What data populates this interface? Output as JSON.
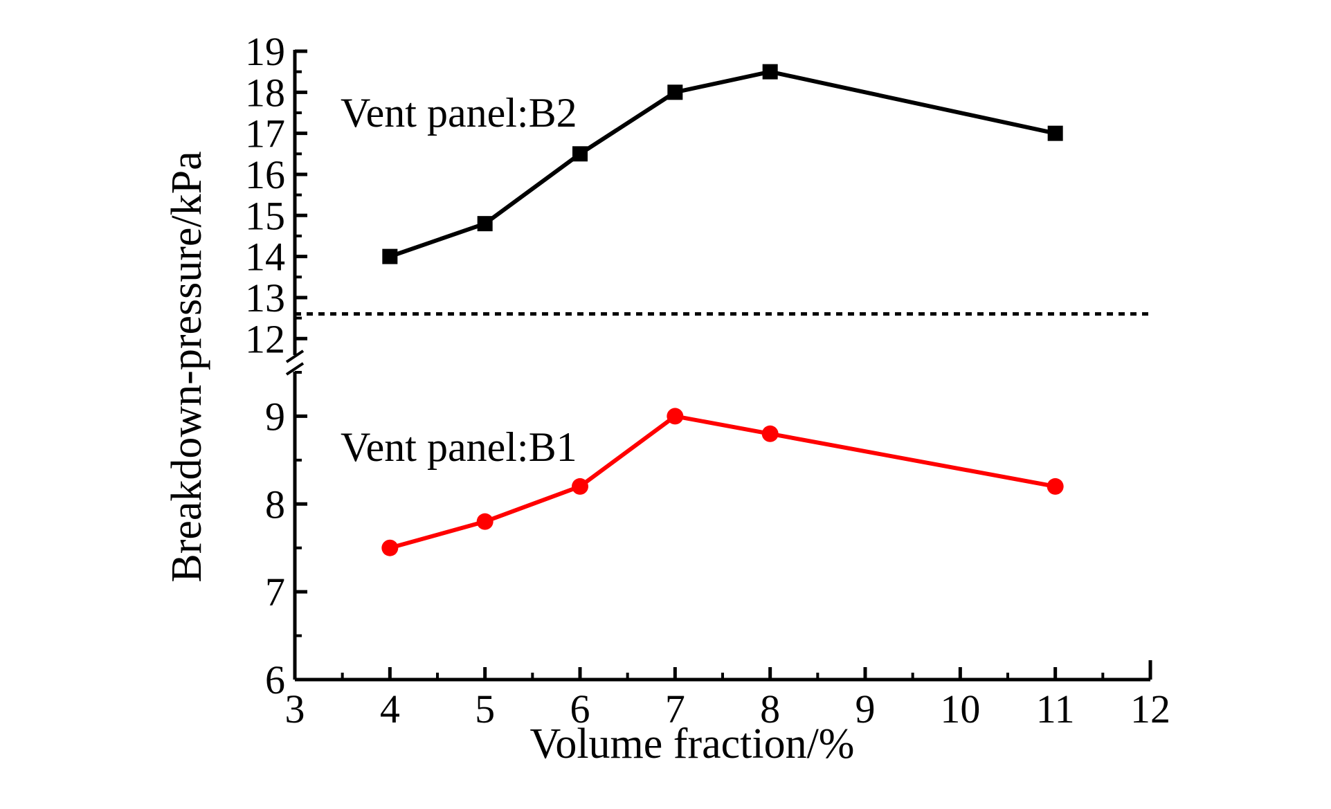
{
  "chart_data": {
    "type": "line",
    "xlabel": "Volume fraction/%",
    "ylabel": "Breakdown-pressure/kPa",
    "xlim": [
      3,
      12
    ],
    "x_ticks": [
      "3",
      "4",
      "5",
      "6",
      "7",
      "8",
      "9",
      "10",
      "11",
      "12"
    ],
    "y_axis_broken": true,
    "y_lower_ticks": [
      "6",
      "7",
      "8",
      "9"
    ],
    "y_upper_ticks": [
      "12",
      "13",
      "14",
      "15",
      "16",
      "17",
      "18",
      "19"
    ],
    "ylim_lower": [
      6,
      9.5
    ],
    "ylim_upper": [
      11.6,
      19
    ],
    "dotted_separator_y": 12.6,
    "grid": false,
    "legend": "none",
    "series": [
      {
        "name": "Vent panel:B2",
        "color": "#000000",
        "marker": "square",
        "x": [
          4,
          5,
          6,
          7,
          8,
          11
        ],
        "values": [
          14.0,
          14.8,
          16.5,
          18.0,
          18.5,
          17.0
        ]
      },
      {
        "name": "Vent panel:B1",
        "color": "#ff0000",
        "marker": "circle",
        "x": [
          4,
          5,
          6,
          7,
          8,
          11
        ],
        "values": [
          7.5,
          7.8,
          8.2,
          9.0,
          8.8,
          8.2
        ]
      }
    ]
  }
}
